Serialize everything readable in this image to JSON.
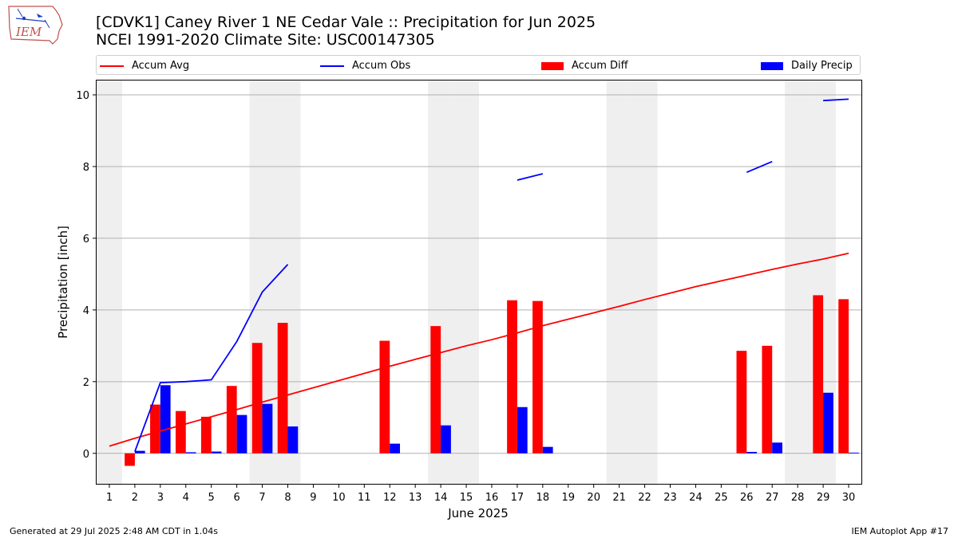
{
  "title_line1": "[CDVK1] Caney River 1 NE Cedar Vale :: Precipitation for Jun 2025",
  "title_line2": "NCEI 1991-2020 Climate Site: USC00147305",
  "logo_text": "IEM",
  "footer_left": "Generated at 29 Jul 2025 2:48 AM CDT in 1.04s",
  "footer_right": "IEM Autoplot App #17",
  "colors": {
    "avg": "#ff0000",
    "obs": "#0000ff",
    "diff": "#ff0000",
    "daily": "#0000ff",
    "weekend": "#efefef",
    "grid": "#b0b0b0"
  },
  "chart_data": {
    "type": "bar",
    "xlabel": "June 2025",
    "ylabel": "Precipitation [inch]",
    "xlim": [
      0.5,
      30.5
    ],
    "ylim": [
      -0.85,
      10.4
    ],
    "yticks": [
      0,
      2,
      4,
      6,
      8,
      10
    ],
    "x": [
      1,
      2,
      3,
      4,
      5,
      6,
      7,
      8,
      9,
      10,
      11,
      12,
      13,
      14,
      15,
      16,
      17,
      18,
      19,
      20,
      21,
      22,
      23,
      24,
      25,
      26,
      27,
      28,
      29,
      30
    ],
    "grid": "horizontal",
    "legend_position": "top",
    "weekend_days": [
      1,
      7,
      8,
      14,
      15,
      21,
      22,
      28,
      29
    ],
    "series": [
      {
        "name": "Accum Avg",
        "kind": "line",
        "values": [
          0.2,
          0.42,
          0.62,
          0.82,
          1.02,
          1.22,
          1.43,
          1.63,
          1.83,
          2.03,
          2.23,
          2.43,
          2.62,
          2.81,
          3.0,
          3.17,
          3.36,
          3.56,
          3.74,
          3.92,
          4.1,
          4.29,
          4.47,
          4.65,
          4.81,
          4.97,
          5.13,
          5.28,
          5.42,
          5.58
        ]
      },
      {
        "name": "Accum Obs",
        "kind": "line",
        "values": [
          null,
          0.05,
          1.97,
          2.0,
          2.05,
          3.12,
          4.5,
          5.27,
          null,
          null,
          null,
          null,
          null,
          null,
          null,
          null,
          7.62,
          7.8,
          null,
          null,
          null,
          null,
          null,
          null,
          null,
          7.84,
          8.14,
          null,
          9.84,
          9.88
        ]
      },
      {
        "name": "Accum Diff",
        "kind": "bar",
        "values": [
          null,
          -0.35,
          1.36,
          1.18,
          1.02,
          1.88,
          3.08,
          3.64,
          null,
          null,
          null,
          3.14,
          null,
          3.55,
          null,
          null,
          4.27,
          4.25,
          null,
          null,
          null,
          null,
          null,
          null,
          null,
          2.86,
          3.0,
          null,
          4.41,
          4.3
        ]
      },
      {
        "name": "Daily Precip",
        "kind": "bar",
        "values": [
          null,
          0.07,
          1.9,
          0.03,
          0.05,
          1.07,
          1.38,
          0.75,
          null,
          null,
          null,
          0.27,
          null,
          0.78,
          null,
          null,
          1.29,
          0.18,
          null,
          null,
          null,
          null,
          null,
          null,
          null,
          0.04,
          0.3,
          null,
          1.69,
          0.02
        ]
      }
    ]
  }
}
